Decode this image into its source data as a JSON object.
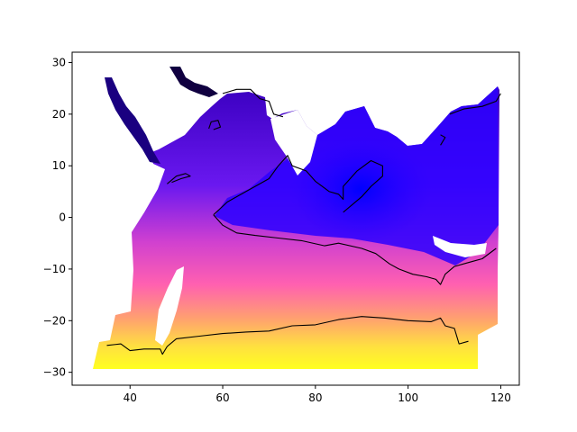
{
  "chart_data": {
    "type": "heatmap",
    "title": "",
    "xlabel": "",
    "ylabel": "",
    "xlim": [
      27.5,
      124
    ],
    "ylim": [
      -32.5,
      32
    ],
    "x_ticks": [
      40,
      60,
      80,
      100,
      120
    ],
    "x_tick_labels": [
      "40",
      "60",
      "80",
      "100",
      "120"
    ],
    "y_ticks": [
      -30,
      -20,
      -10,
      0,
      10,
      20,
      30
    ],
    "y_tick_labels": [
      "−30",
      "−20",
      "−10",
      "0",
      "10",
      "20",
      "30"
    ],
    "colormap": "gnuplot2",
    "colormap_stops": [
      "#000000",
      "#0000ff",
      "#8a2ee0",
      "#ff66a0",
      "#ffd040",
      "#ffff00"
    ],
    "colorbar": false,
    "grid": false,
    "legend": "none",
    "contours": [
      {
        "id": "southern-contour",
        "points": [
          [
            35,
            -24.8
          ],
          [
            38,
            -24.5
          ],
          [
            40,
            -25.8
          ],
          [
            43,
            -25.5
          ],
          [
            46.5,
            -25.5
          ],
          [
            47,
            -26.5
          ],
          [
            48,
            -25
          ],
          [
            50,
            -23.5
          ],
          [
            55,
            -23
          ],
          [
            60,
            -22.5
          ],
          [
            65,
            -22.2
          ],
          [
            70,
            -22
          ],
          [
            75,
            -21
          ],
          [
            80,
            -20.8
          ],
          [
            85,
            -19.8
          ],
          [
            90,
            -19.2
          ],
          [
            95,
            -19.5
          ],
          [
            100,
            -20
          ],
          [
            105,
            -20.2
          ],
          [
            107,
            -19.5
          ],
          [
            108,
            -21
          ],
          [
            110,
            -21.5
          ],
          [
            111,
            -24.5
          ],
          [
            113,
            -24
          ]
        ]
      },
      {
        "id": "equatorial-contour",
        "points": [
          [
            58,
            0.5
          ],
          [
            60,
            -1.5
          ],
          [
            63,
            -3
          ],
          [
            67,
            -3.5
          ],
          [
            72,
            -4
          ],
          [
            77,
            -4.5
          ],
          [
            82,
            -5.5
          ],
          [
            85,
            -5
          ],
          [
            90,
            -6
          ],
          [
            93,
            -7
          ],
          [
            96,
            -9
          ],
          [
            98,
            -10
          ],
          [
            101,
            -11
          ],
          [
            104,
            -11.5
          ],
          [
            106,
            -12
          ],
          [
            107,
            -13
          ],
          [
            108,
            -11
          ],
          [
            110,
            -9.5
          ],
          [
            112,
            -9
          ],
          [
            114,
            -8.5
          ],
          [
            116,
            -8
          ],
          [
            119,
            -6
          ]
        ]
      },
      {
        "id": "northern-bay-contour",
        "points": [
          [
            58,
            0.5
          ],
          [
            61,
            3
          ],
          [
            65,
            5
          ],
          [
            70,
            7.5
          ],
          [
            72,
            10
          ],
          [
            74,
            12
          ],
          [
            75,
            10
          ],
          [
            78,
            9
          ],
          [
            80,
            7
          ],
          [
            83,
            5
          ],
          [
            85,
            4.5
          ],
          [
            86,
            3.5
          ],
          [
            86,
            6
          ],
          [
            89,
            9
          ],
          [
            92,
            11
          ],
          [
            94.5,
            10
          ],
          [
            94.5,
            8
          ],
          [
            92,
            6
          ],
          [
            90,
            4
          ],
          [
            88,
            2.5
          ],
          [
            86,
            1
          ]
        ]
      },
      {
        "id": "arabian-coast-contour",
        "points": [
          [
            57,
            17.2
          ],
          [
            57.5,
            18.5
          ],
          [
            59,
            18.8
          ],
          [
            59.5,
            17.5
          ],
          [
            58,
            17
          ]
        ]
      },
      {
        "id": "horn-contour",
        "points": [
          [
            48,
            6.5
          ],
          [
            50,
            8
          ],
          [
            52,
            8.5
          ],
          [
            53,
            8
          ],
          [
            51,
            7.5
          ],
          [
            49,
            6.8
          ]
        ]
      },
      {
        "id": "persian-coast-contour",
        "points": [
          [
            60,
            24
          ],
          [
            63,
            24.8
          ],
          [
            66,
            24.8
          ],
          [
            68,
            23
          ],
          [
            70,
            22.5
          ],
          [
            71,
            20
          ],
          [
            73,
            19.5
          ]
        ]
      },
      {
        "id": "pacific-fringe-contour",
        "points": [
          [
            109,
            20
          ],
          [
            112,
            21
          ],
          [
            116,
            21.5
          ],
          [
            119,
            22.5
          ],
          [
            120,
            24
          ]
        ]
      },
      {
        "id": "philippine-contour",
        "points": [
          [
            107,
            14
          ],
          [
            108,
            15.5
          ],
          [
            107,
            16
          ]
        ]
      }
    ]
  }
}
